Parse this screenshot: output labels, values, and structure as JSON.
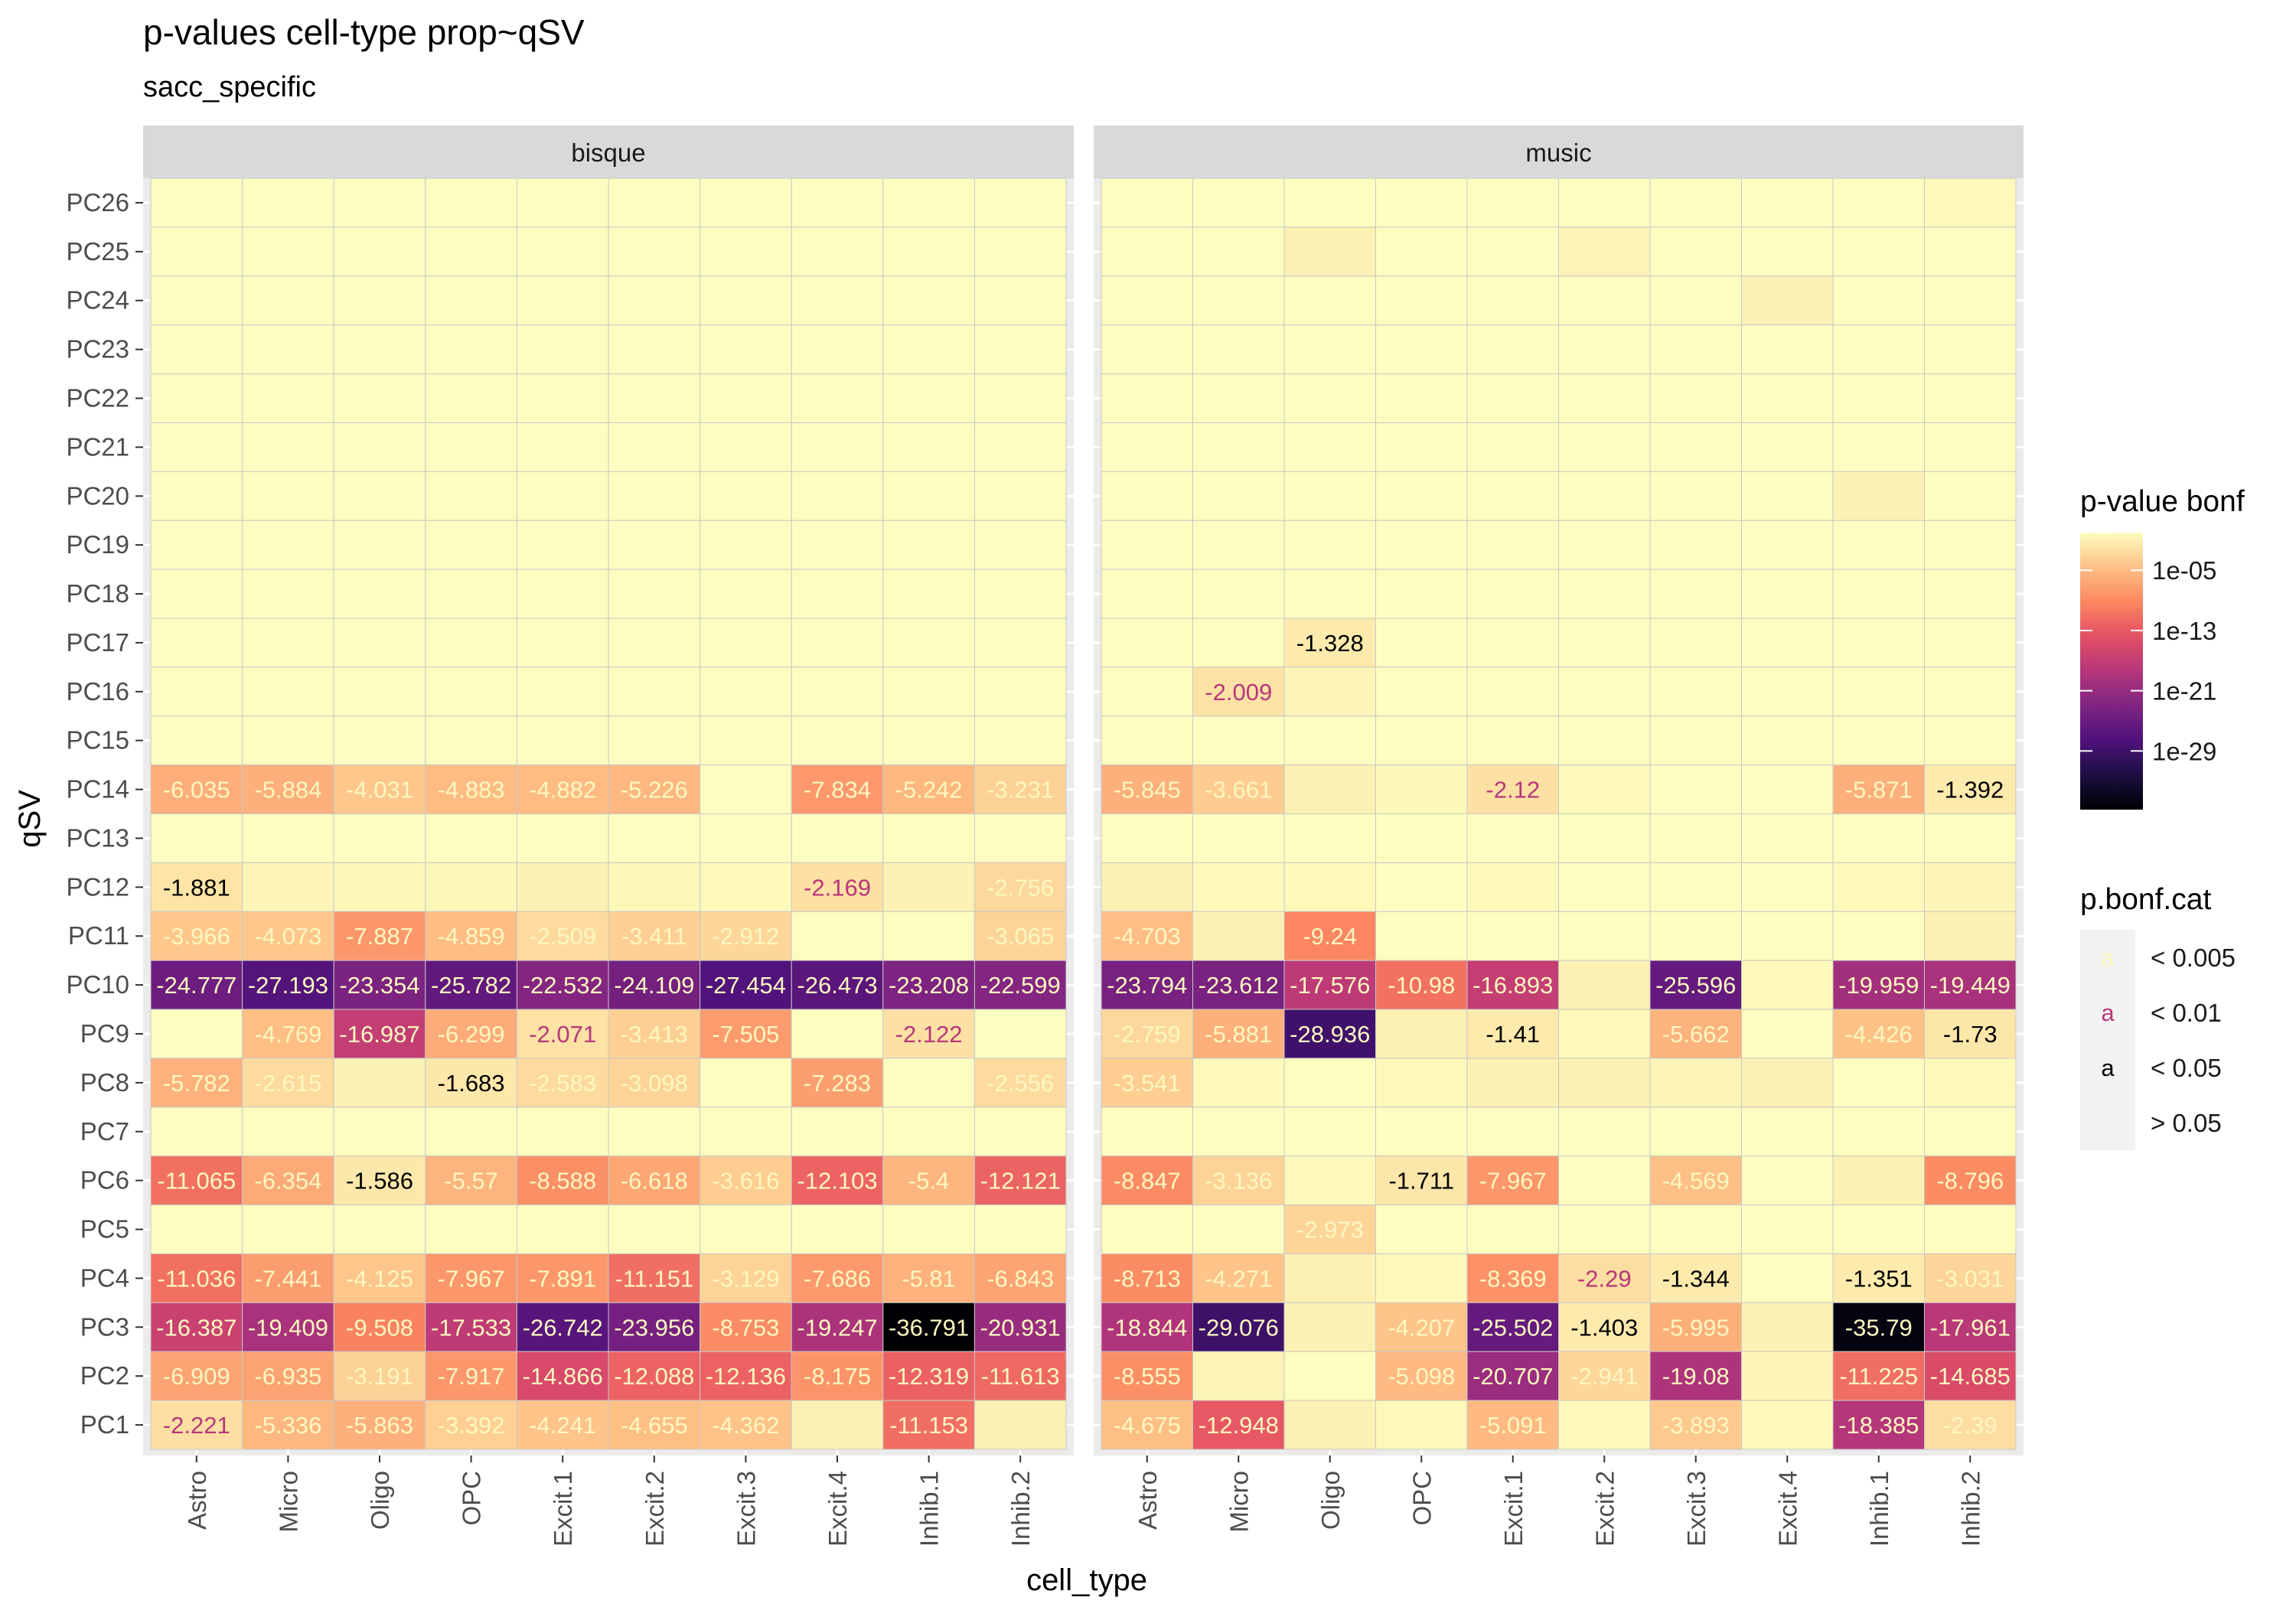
{
  "chart_data": {
    "type": "heatmap",
    "title": "p-values cell-type prop~qSV",
    "subtitle": "sacc_specific",
    "xlabel": "cell_type",
    "ylabel": "qSV",
    "categories": [
      "Astro",
      "Micro",
      "Oligo",
      "OPC",
      "Excit.1",
      "Excit.2",
      "Excit.3",
      "Excit.4",
      "Inhib.1",
      "Inhib.2"
    ],
    "rows": [
      "PC26",
      "PC25",
      "PC24",
      "PC23",
      "PC22",
      "PC21",
      "PC20",
      "PC19",
      "PC18",
      "PC17",
      "PC16",
      "PC15",
      "PC14",
      "PC13",
      "PC12",
      "PC11",
      "PC10",
      "PC9",
      "PC8",
      "PC7",
      "PC6",
      "PC5",
      "PC4",
      "PC3",
      "PC2",
      "PC1"
    ],
    "panels": [
      {
        "name": "bisque",
        "cells": {
          "PC14": [
            "-6.035",
            "-5.884",
            "-4.031",
            "-4.883",
            "-4.882",
            "-5.226",
            null,
            "-7.834",
            "-5.242",
            "-3.231"
          ],
          "PC12": [
            "-1.881",
            null,
            null,
            null,
            null,
            null,
            null,
            "-2.169",
            null,
            "-2.756"
          ],
          "PC11": [
            "-3.966",
            "-4.073",
            "-7.887",
            "-4.859",
            "-2.509",
            "-3.411",
            "-2.912",
            null,
            null,
            "-3.065"
          ],
          "PC10": [
            "-24.777",
            "-27.193",
            "-23.354",
            "-25.782",
            "-22.532",
            "-24.109",
            "-27.454",
            "-26.473",
            "-23.208",
            "-22.599"
          ],
          "PC9": [
            null,
            "-4.769",
            "-16.987",
            "-6.299",
            "-2.071",
            "-3.413",
            "-7.505",
            null,
            "-2.122",
            null
          ],
          "PC8": [
            "-5.782",
            "-2.615",
            null,
            "-1.683",
            "-2.583",
            "-3.098",
            null,
            "-7.283",
            null,
            "-2.556"
          ],
          "PC6": [
            "-11.065",
            "-6.354",
            "-1.586",
            "-5.57",
            "-8.588",
            "-6.618",
            "-3.616",
            "-12.103",
            "-5.4",
            "-12.121"
          ],
          "PC4": [
            "-11.036",
            "-7.441",
            "-4.125",
            "-7.967",
            "-7.891",
            "-11.151",
            "-3.129",
            "-7.686",
            "-5.81",
            "-6.843"
          ],
          "PC3": [
            "-16.387",
            "-19.409",
            "-9.508",
            "-17.533",
            "-26.742",
            "-23.956",
            "-8.753",
            "-19.247",
            "-36.791",
            "-20.931"
          ],
          "PC2": [
            "-6.909",
            "-6.935",
            "-3.191",
            "-7.917",
            "-14.866",
            "-12.088",
            "-12.136",
            "-8.175",
            "-12.319",
            "-11.613"
          ],
          "PC1": [
            "-2.221",
            "-5.336",
            "-5.863",
            "-3.392",
            "-4.241",
            "-4.655",
            "-4.362",
            null,
            "-11.153",
            null
          ]
        },
        "faint_cells": {
          "PC12": [
            null,
            -0.6,
            -0.4,
            -0.4,
            -0.9,
            -0.4,
            -0.3,
            null,
            -0.8,
            null
          ],
          "PC8": [
            null,
            null,
            -0.9,
            null,
            null,
            null,
            null,
            null,
            null,
            null
          ],
          "PC1": [
            null,
            null,
            null,
            null,
            null,
            null,
            null,
            -0.9,
            null,
            -0.9
          ]
        }
      },
      {
        "name": "music",
        "cells": {
          "PC17": [
            null,
            null,
            "-1.328",
            null,
            null,
            null,
            null,
            null,
            null,
            null
          ],
          "PC16": [
            null,
            "-2.009",
            null,
            null,
            null,
            null,
            null,
            null,
            null,
            null
          ],
          "PC14": [
            "-5.845",
            "-3.661",
            null,
            null,
            "-2.12",
            null,
            null,
            null,
            "-5.871",
            "-1.392"
          ],
          "PC11": [
            "-4.703",
            null,
            "-9.24",
            null,
            null,
            null,
            null,
            null,
            null,
            null
          ],
          "PC10": [
            "-23.794",
            "-23.612",
            "-17.576",
            "-10.98",
            "-16.893",
            null,
            "-25.596",
            null,
            "-19.959",
            "-19.449"
          ],
          "PC9": [
            "-2.759",
            "-5.881",
            "-28.936",
            null,
            "-1.41",
            null,
            "-5.662",
            null,
            "-4.426",
            "-1.73"
          ],
          "PC8": [
            "-3.541",
            null,
            null,
            null,
            null,
            null,
            null,
            null,
            null,
            null
          ],
          "PC6": [
            "-8.847",
            "-3.136",
            null,
            "-1.711",
            "-7.967",
            null,
            "-4.569",
            null,
            null,
            "-8.796"
          ],
          "PC5": [
            null,
            null,
            "-2.973",
            null,
            null,
            null,
            null,
            null,
            null,
            null
          ],
          "PC4": [
            "-8.713",
            "-4.271",
            null,
            null,
            "-8.369",
            "-2.29",
            "-1.344",
            null,
            "-1.351",
            "-3.031"
          ],
          "PC3": [
            "-18.844",
            "-29.076",
            null,
            "-4.207",
            "-25.502",
            "-1.403",
            "-5.995",
            null,
            "-35.79",
            "-17.961"
          ],
          "PC2": [
            "-8.555",
            null,
            null,
            "-5.098",
            "-20.707",
            "-2.941",
            "-19.08",
            null,
            "-11.225",
            "-14.685"
          ],
          "PC1": [
            "-4.675",
            "-12.948",
            null,
            null,
            "-5.091",
            null,
            "-3.893",
            null,
            "-18.385",
            "-2.39"
          ]
        },
        "faint_cells": {
          "PC26": [
            null,
            null,
            null,
            null,
            null,
            null,
            null,
            null,
            null,
            -0.3
          ],
          "PC25": [
            null,
            null,
            -1.0,
            null,
            null,
            -0.7,
            null,
            null,
            null,
            null
          ],
          "PC24": [
            null,
            null,
            null,
            null,
            null,
            null,
            null,
            -0.9,
            null,
            null
          ],
          "PC20": [
            null,
            null,
            null,
            null,
            null,
            null,
            null,
            null,
            -0.8,
            null
          ],
          "PC16": [
            null,
            null,
            -0.6,
            null,
            null,
            null,
            null,
            null,
            null,
            null
          ],
          "PC14": [
            null,
            null,
            -0.9,
            -0.4,
            null,
            -0.3,
            null,
            null,
            null,
            null
          ],
          "PC12": [
            -1.0,
            -0.3,
            -0.3,
            null,
            -0.3,
            null,
            null,
            null,
            -0.3,
            -0.6
          ],
          "PC11": [
            null,
            -0.9,
            null,
            null,
            null,
            null,
            null,
            null,
            null,
            -1.0
          ],
          "PC10": [
            null,
            null,
            null,
            null,
            null,
            -1.0,
            null,
            -0.3,
            null,
            null
          ],
          "PC9": [
            null,
            null,
            null,
            -1.0,
            null,
            -0.3,
            null,
            null,
            null,
            null
          ],
          "PC8": [
            null,
            -0.3,
            null,
            -0.3,
            -0.9,
            -0.9,
            -0.6,
            -0.9,
            null,
            -0.3
          ],
          "PC6": [
            null,
            null,
            -0.3,
            null,
            null,
            null,
            null,
            null,
            -1.0,
            null
          ],
          "PC4": [
            null,
            null,
            -1.0,
            -0.3,
            null,
            null,
            null,
            null,
            null,
            null
          ],
          "PC3": [
            null,
            null,
            -0.9,
            null,
            null,
            null,
            null,
            -0.9,
            null,
            null
          ],
          "PC2": [
            null,
            -0.7,
            null,
            null,
            null,
            null,
            null,
            -0.6,
            null,
            null
          ],
          "PC1": [
            null,
            null,
            -0.9,
            -0.3,
            null,
            -0.3,
            null,
            -0.3,
            null,
            null
          ]
        }
      }
    ],
    "legend_fill": {
      "title": "p-value bonf",
      "ticks": [
        "1e-05",
        "1e-13",
        "1e-21",
        "1e-29"
      ],
      "tick_log10": [
        -5,
        -13,
        -21,
        -29
      ],
      "range_log10": [
        -36.791,
        0
      ]
    },
    "legend_cat": {
      "title": "p.bonf.cat",
      "glyph": "a",
      "entries": [
        {
          "label": "< 0.005",
          "color": "#fcf8c0"
        },
        {
          "label": "< 0.01",
          "color": "#b73779"
        },
        {
          "label": "< 0.05",
          "color": "#000000"
        },
        {
          "label": "> 0.05",
          "color": ""
        }
      ]
    },
    "grid": true,
    "legend_position": "right"
  }
}
